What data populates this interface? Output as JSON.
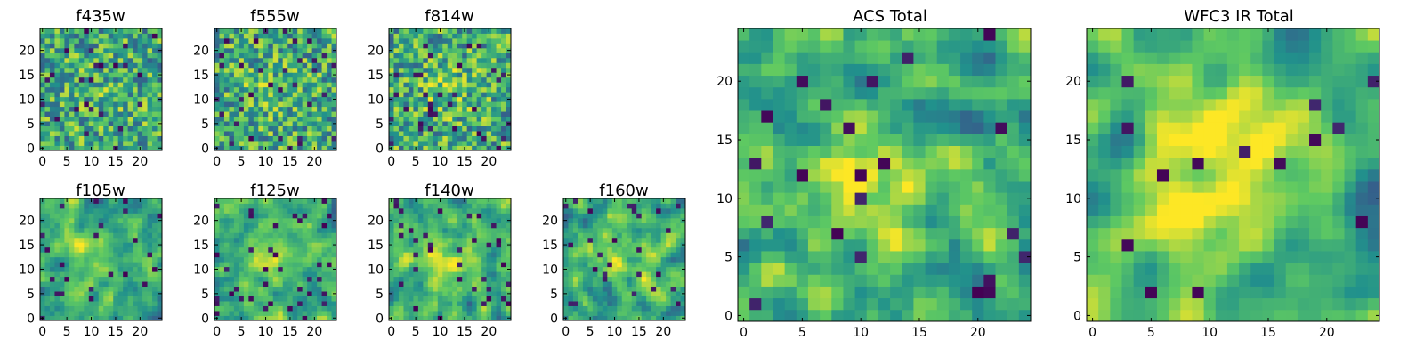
{
  "figure": {
    "background": "#ffffff",
    "colormap": [
      "#440154",
      "#3b528b",
      "#21918c",
      "#5ec962",
      "#fde725"
    ]
  },
  "chart_data": [
    {
      "id": "f435w",
      "type": "heatmap",
      "title": "f435w",
      "grid_size": 25,
      "xlim": [
        0,
        24
      ],
      "ylim": [
        0,
        24
      ],
      "xticks": [
        0,
        5,
        10,
        15,
        20
      ],
      "yticks": [
        0,
        5,
        10,
        15,
        20
      ],
      "xlabel": "",
      "ylabel": "",
      "seed": 11,
      "smooth": 0,
      "center_boost": 0.05,
      "dark_fraction": 0.04
    },
    {
      "id": "f555w",
      "type": "heatmap",
      "title": "f555w",
      "grid_size": 25,
      "xlim": [
        0,
        24
      ],
      "ylim": [
        0,
        24
      ],
      "xticks": [
        0,
        5,
        10,
        15,
        20
      ],
      "yticks": [
        0,
        5,
        10,
        15,
        20
      ],
      "xlabel": "",
      "ylabel": "",
      "seed": 23,
      "smooth": 0,
      "center_boost": 0.08,
      "dark_fraction": 0.05
    },
    {
      "id": "f814w",
      "type": "heatmap",
      "title": "f814w",
      "grid_size": 25,
      "xlim": [
        0,
        24
      ],
      "ylim": [
        0,
        24
      ],
      "xticks": [
        0,
        5,
        10,
        15,
        20
      ],
      "yticks": [
        0,
        5,
        10,
        15,
        20
      ],
      "xlabel": "",
      "ylabel": "",
      "seed": 37,
      "smooth": 0,
      "center_boost": 0.12,
      "dark_fraction": 0.05
    },
    {
      "id": "f105w",
      "type": "heatmap",
      "title": "f105w",
      "grid_size": 25,
      "xlim": [
        0,
        24
      ],
      "ylim": [
        0,
        24
      ],
      "xticks": [
        0,
        5,
        10,
        15,
        20
      ],
      "yticks": [
        0,
        5,
        10,
        15,
        20
      ],
      "xlabel": "",
      "ylabel": "",
      "seed": 41,
      "smooth": 1,
      "center_boost": 0.18,
      "dark_fraction": 0.05
    },
    {
      "id": "f125w",
      "type": "heatmap",
      "title": "f125w",
      "grid_size": 25,
      "xlim": [
        0,
        24
      ],
      "ylim": [
        0,
        24
      ],
      "xticks": [
        0,
        5,
        10,
        15,
        20
      ],
      "yticks": [
        0,
        5,
        10,
        15,
        20
      ],
      "xlabel": "",
      "ylabel": "",
      "seed": 53,
      "smooth": 1,
      "center_boost": 0.18,
      "dark_fraction": 0.05
    },
    {
      "id": "f140w",
      "type": "heatmap",
      "title": "f140w",
      "grid_size": 25,
      "xlim": [
        0,
        24
      ],
      "ylim": [
        0,
        24
      ],
      "xticks": [
        0,
        5,
        10,
        15,
        20
      ],
      "yticks": [
        0,
        5,
        10,
        15,
        20
      ],
      "xlabel": "",
      "ylabel": "",
      "seed": 67,
      "smooth": 1,
      "center_boost": 0.18,
      "dark_fraction": 0.05
    },
    {
      "id": "f160w",
      "type": "heatmap",
      "title": "f160w",
      "grid_size": 25,
      "xlim": [
        0,
        24
      ],
      "ylim": [
        0,
        24
      ],
      "xticks": [
        0,
        5,
        10,
        15,
        20
      ],
      "yticks": [
        0,
        5,
        10,
        15,
        20
      ],
      "xlabel": "",
      "ylabel": "",
      "seed": 79,
      "smooth": 1,
      "center_boost": 0.22,
      "dark_fraction": 0.04
    },
    {
      "id": "acs-total",
      "type": "heatmap",
      "title": "ACS Total",
      "grid_size": 25,
      "xlim": [
        0,
        24
      ],
      "ylim": [
        0,
        24
      ],
      "xticks": [
        0,
        5,
        10,
        15,
        20
      ],
      "yticks": [
        0,
        5,
        10,
        15,
        20
      ],
      "xlabel": "",
      "ylabel": "",
      "seed": 97,
      "smooth": 1,
      "center_boost": 0.28,
      "dark_fraction": 0.04
    },
    {
      "id": "wfc3-ir-total",
      "type": "heatmap",
      "title": "WFC3 IR Total",
      "grid_size": 25,
      "xlim": [
        0,
        24
      ],
      "ylim": [
        0,
        24
      ],
      "xticks": [
        0,
        5,
        10,
        15,
        20
      ],
      "yticks": [
        0,
        5,
        10,
        15,
        20
      ],
      "xlabel": "",
      "ylabel": "",
      "seed": 113,
      "smooth": 2,
      "center_boost": 0.38,
      "dark_fraction": 0.03
    }
  ]
}
